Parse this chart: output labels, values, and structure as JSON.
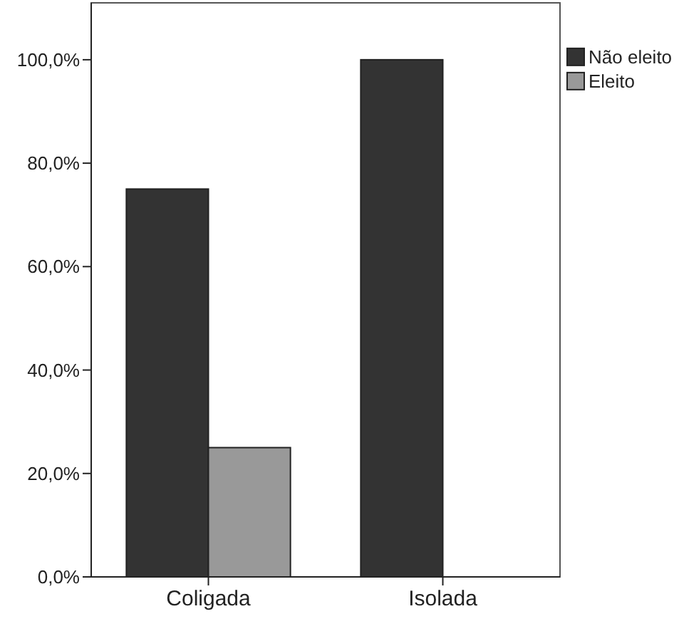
{
  "chart_data": {
    "type": "bar",
    "categories": [
      "Coligada",
      "Isolada"
    ],
    "series": [
      {
        "name": "Não eleito",
        "color": "#333333",
        "values": [
          75,
          100
        ]
      },
      {
        "name": "Eleito",
        "color": "#999999",
        "values": [
          25,
          0
        ]
      }
    ],
    "ylim": [
      0,
      111
    ],
    "yticks": [
      {
        "value": 0,
        "label": "0,0%"
      },
      {
        "value": 20,
        "label": "20,0%"
      },
      {
        "value": 40,
        "label": "40,0%"
      },
      {
        "value": 60,
        "label": "60,0%"
      },
      {
        "value": 80,
        "label": "80,0%"
      },
      {
        "value": 100,
        "label": "100,0%"
      }
    ],
    "grid": false,
    "legend": "right"
  }
}
